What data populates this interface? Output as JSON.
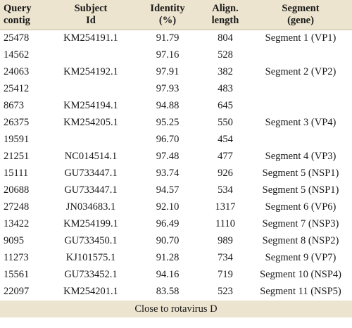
{
  "headers": {
    "query_l1": "Query",
    "query_l2": "contig",
    "subject_l1": "Subject",
    "subject_l2": "Id",
    "identity_l1": "Identity",
    "identity_l2": "(%)",
    "align_l1": "Align.",
    "align_l2": "length",
    "segment_l1": "Segment",
    "segment_l2": "(gene)"
  },
  "rows": [
    {
      "query": "25478",
      "subject": "KM254191.1",
      "identity": "91.79",
      "length": "804",
      "segment": "Segment 1 (VP1)"
    },
    {
      "query": "14562",
      "subject": "",
      "identity": "97.16",
      "length": "528",
      "segment": ""
    },
    {
      "query": "24063",
      "subject": "KM254192.1",
      "identity": "97.91",
      "length": "382",
      "segment": "Segment 2 (VP2)"
    },
    {
      "query": "25412",
      "subject": "",
      "identity": "97.93",
      "length": "483",
      "segment": ""
    },
    {
      "query": "8673",
      "subject": "KM254194.1",
      "identity": "94.88",
      "length": "645",
      "segment": ""
    },
    {
      "query": "26375",
      "subject": "KM254205.1",
      "identity": "95.25",
      "length": "550",
      "segment": "Segment 3 (VP4)"
    },
    {
      "query": "19591",
      "subject": "",
      "identity": "96.70",
      "length": "454",
      "segment": ""
    },
    {
      "query": "21251",
      "subject": "NC014514.1",
      "identity": "97.48",
      "length": "477",
      "segment": "Segment 4 (VP3)"
    },
    {
      "query": "15111",
      "subject": "GU733447.1",
      "identity": "93.74",
      "length": "926",
      "segment": "Segment 5 (NSP1)"
    },
    {
      "query": "20688",
      "subject": "GU733447.1",
      "identity": "94.57",
      "length": "534",
      "segment": "Segment 5 (NSP1)"
    },
    {
      "query": "27248",
      "subject": "JN034683.1",
      "identity": "92.10",
      "length": "1317",
      "segment": "Segment 6 (VP6)"
    },
    {
      "query": "13422",
      "subject": "KM254199.1",
      "identity": "96.49",
      "length": "1110",
      "segment": "Segment 7 (NSP3)"
    },
    {
      "query": "9095",
      "subject": "GU733450.1",
      "identity": "90.70",
      "length": "989",
      "segment": "Segment 8 (NSP2)"
    },
    {
      "query": "11273",
      "subject": "KJ101575.1",
      "identity": "91.28",
      "length": "734",
      "segment": "Segment 9 (VP7)"
    },
    {
      "query": "15561",
      "subject": "GU733452.1",
      "identity": "94.16",
      "length": "719",
      "segment": "Segment 10 (NSP4)"
    },
    {
      "query": "22097",
      "subject": "KM254201.1",
      "identity": "83.58",
      "length": "523",
      "segment": "Segment 11 (NSP5)"
    }
  ],
  "footer": "Close to rotavirus D"
}
